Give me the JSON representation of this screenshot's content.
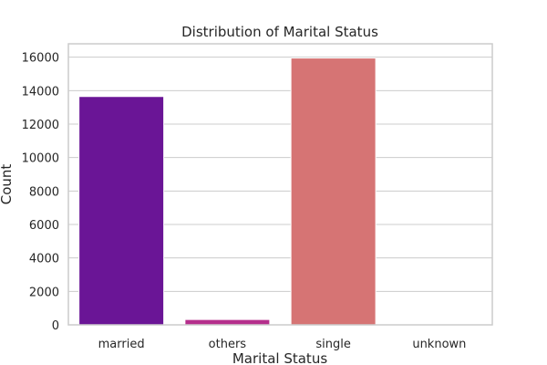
{
  "chart_data": {
    "type": "bar",
    "title": "Distribution of Marital Status",
    "xlabel": "Marital Status",
    "ylabel": "Count",
    "categories": [
      "married",
      "others",
      "single",
      "unknown"
    ],
    "values": [
      13650,
      320,
      15950,
      40
    ],
    "colors": [
      "#6a1596",
      "#b52f8c",
      "#d67474",
      "#f3b66b"
    ],
    "ylim": [
      0,
      16800
    ],
    "yticks": [
      0,
      2000,
      4000,
      6000,
      8000,
      10000,
      12000,
      14000,
      16000
    ],
    "ytick_labels": [
      "0",
      "2000",
      "4000",
      "6000",
      "8000",
      "10000",
      "12000",
      "14000",
      "16000"
    ],
    "grid": true,
    "grid_axis": "y"
  }
}
